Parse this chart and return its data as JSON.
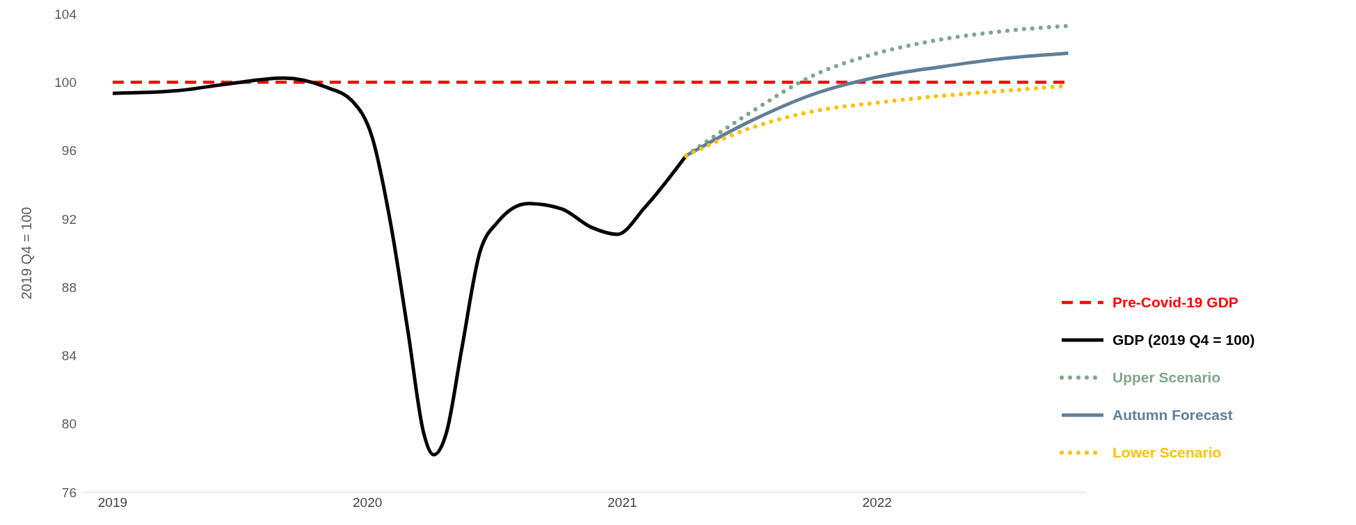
{
  "chart_data": {
    "type": "line",
    "ylabel": "2019 Q4 = 100",
    "xlim": [
      2018.88,
      2022.82
    ],
    "xticks": [
      2019,
      2020,
      2021,
      2022
    ],
    "ylim": [
      76,
      104
    ],
    "yticks": [
      76,
      80,
      84,
      88,
      92,
      96,
      100,
      104
    ],
    "grid": false,
    "legend": "right",
    "marker": "none",
    "series": [
      {
        "name": "Pre-Covid-19 GDP",
        "color": "#ff0000",
        "line_style": "dashed",
        "x": [
          2019,
          2022.75
        ],
        "values": [
          100,
          100
        ]
      },
      {
        "name": "GDP (2019 Q4 = 100)",
        "color": "#000000",
        "line_style": "solid",
        "x": [
          2019.0,
          2019.25,
          2019.45,
          2019.67,
          2019.84,
          2019.94,
          2020.02,
          2020.09,
          2020.16,
          2020.22,
          2020.26,
          2020.31,
          2020.37,
          2020.44,
          2020.51,
          2020.63,
          2020.76,
          2020.88,
          2020.98,
          2021.09,
          2021.25
        ],
        "values": [
          99.35,
          99.5,
          99.9,
          100.25,
          99.7,
          98.9,
          96.7,
          91.8,
          85.3,
          79.5,
          78.2,
          79.5,
          84.4,
          90.0,
          91.8,
          92.9,
          92.6,
          91.5,
          91.1,
          92.7,
          95.7
        ]
      },
      {
        "name": "Upper Scenario",
        "color": "#7fa68a",
        "line_style": "dotted",
        "x": [
          2021.25,
          2021.5,
          2021.75,
          2022.0,
          2022.25,
          2022.5,
          2022.75
        ],
        "values": [
          95.7,
          98.2,
          100.4,
          101.7,
          102.5,
          103.0,
          103.3
        ]
      },
      {
        "name": "Autumn Forecast",
        "color": "#5f7f99",
        "line_style": "solid",
        "x": [
          2021.25,
          2021.5,
          2021.75,
          2022.0,
          2022.25,
          2022.5,
          2022.75
        ],
        "values": [
          95.7,
          97.7,
          99.3,
          100.3,
          100.9,
          101.4,
          101.7
        ]
      },
      {
        "name": "Lower Scenario",
        "color": "#ffc000",
        "line_style": "dotted",
        "x": [
          2021.25,
          2021.5,
          2021.75,
          2022.0,
          2022.25,
          2022.5,
          2022.75
        ],
        "values": [
          95.7,
          97.3,
          98.3,
          98.8,
          99.2,
          99.5,
          99.8
        ]
      }
    ]
  }
}
